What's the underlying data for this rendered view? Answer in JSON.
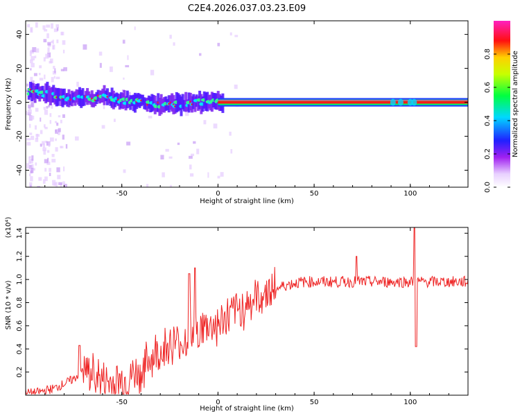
{
  "chart_data": [
    {
      "type": "heatmap",
      "title": "C2E4.2026.037.03.23.E09",
      "xlabel": "Height of straight line (km)",
      "ylabel": "Frequency (Hz)",
      "xlim": [
        -100,
        130
      ],
      "ylim": [
        -50,
        48
      ],
      "xticks": [
        -50,
        0,
        50,
        100
      ],
      "yticks": [
        40,
        20,
        0,
        -20,
        -40
      ],
      "colorbar": {
        "label": "Normalized spectral amplitude",
        "range": [
          0,
          1
        ],
        "ticks": [
          "0.0",
          "0.2",
          "0.4",
          "0.6",
          "0.8"
        ],
        "colormap": "rainbow (white-violet-blue-cyan-green-yellow-red-magenta)"
      },
      "ridge": {
        "description": "Dominant frequency track",
        "x": [
          -97,
          -90,
          -80,
          -70,
          -60,
          -50,
          -40,
          -30,
          -20,
          -10,
          -5,
          0,
          10,
          30,
          60,
          90,
          100,
          110,
          130
        ],
        "y": [
          6,
          5,
          3,
          2,
          3,
          1,
          0,
          -2,
          -1,
          0,
          1,
          0,
          0,
          0,
          0,
          0,
          0,
          0,
          0
        ]
      }
    },
    {
      "type": "line",
      "xlabel": "Height of straight line (km)",
      "ylabel": "SNR (10 * v/v)",
      "y_multiplier": "(x10⁴)",
      "xlim": [
        -100,
        130
      ],
      "ylim": [
        0,
        1.45
      ],
      "xticks": [
        -50,
        0,
        50,
        100
      ],
      "yticks": [
        0.2,
        0.4,
        0.6,
        0.8,
        1.0,
        1.2,
        1.4
      ],
      "series": [
        {
          "name": "SNR",
          "color": "#ee2222",
          "x": [
            -100,
            -95,
            -90,
            -85,
            -80,
            -75,
            -70,
            -65,
            -60,
            -55,
            -50,
            -45,
            -40,
            -35,
            -30,
            -25,
            -20,
            -15,
            -10,
            -5,
            0,
            5,
            10,
            15,
            20,
            25,
            30,
            35,
            40,
            45,
            50,
            55,
            60,
            65,
            70,
            75,
            80,
            85,
            90,
            95,
            100,
            105,
            110,
            115,
            120,
            125,
            130
          ],
          "y": [
            0.02,
            0.02,
            0.04,
            0.06,
            0.1,
            0.14,
            0.22,
            0.18,
            0.12,
            0.1,
            0.12,
            0.16,
            0.2,
            0.32,
            0.38,
            0.42,
            0.45,
            0.5,
            0.55,
            0.6,
            0.6,
            0.66,
            0.72,
            0.78,
            0.84,
            0.88,
            0.92,
            0.95,
            0.97,
            0.98,
            0.98,
            0.98,
            0.98,
            0.98,
            0.98,
            0.98,
            0.98,
            0.98,
            0.98,
            0.98,
            0.98,
            0.98,
            0.98,
            0.98,
            0.98,
            0.98,
            0.98
          ],
          "spikes": [
            {
              "x": -72,
              "y": 0.43
            },
            {
              "x": -15,
              "y": 1.05
            },
            {
              "x": -12,
              "y": 1.1
            },
            {
              "x": 72,
              "y": 1.2
            },
            {
              "x": 102,
              "y": 1.45
            },
            {
              "x": 103,
              "y": 0.42
            }
          ]
        }
      ]
    }
  ]
}
